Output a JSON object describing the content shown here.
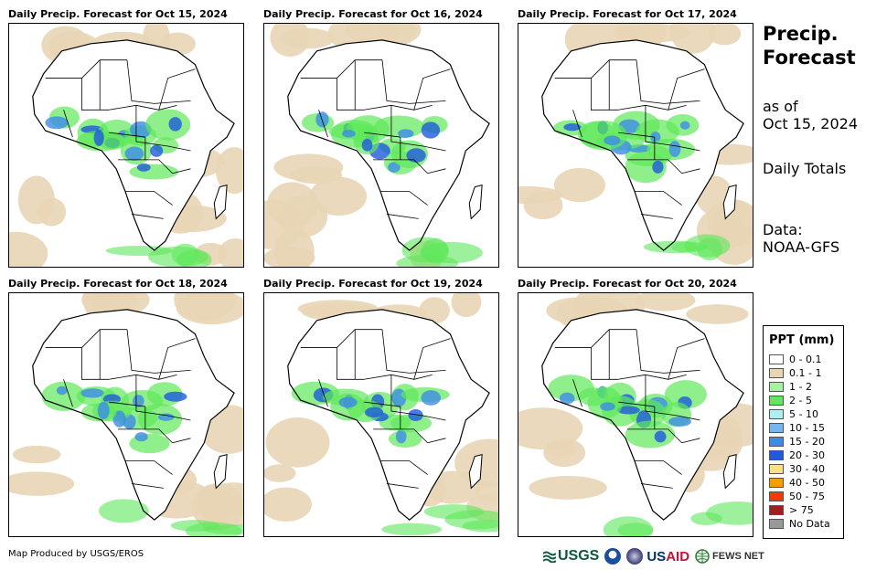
{
  "panels": [
    {
      "title": "Daily Precip. Forecast for Oct 15, 2024"
    },
    {
      "title": "Daily Precip. Forecast for Oct 16, 2024"
    },
    {
      "title": "Daily Precip. Forecast for Oct 17, 2024"
    },
    {
      "title": "Daily Precip. Forecast for Oct 18, 2024"
    },
    {
      "title": "Daily Precip. Forecast for Oct 19, 2024"
    },
    {
      "title": "Daily Precip. Forecast for Oct 20, 2024"
    }
  ],
  "side": {
    "title_line1": "Precip.",
    "title_line2": "Forecast",
    "asof_line1": "as of",
    "asof_line2": "Oct 15, 2024",
    "totals": "Daily Totals",
    "data_line1": "Data:",
    "data_line2": "NOAA-GFS"
  },
  "legend": {
    "title": "PPT (mm)",
    "items": [
      {
        "label": "0 - 0.1",
        "color": "#ffffff"
      },
      {
        "label": "0.1 - 1",
        "color": "#e8d5b5"
      },
      {
        "label": "1 - 2",
        "color": "#a9f0a0"
      },
      {
        "label": "2 - 5",
        "color": "#5ee85a"
      },
      {
        "label": "5 - 10",
        "color": "#aef0f0"
      },
      {
        "label": "10 - 15",
        "color": "#78b4f0"
      },
      {
        "label": "15 - 20",
        "color": "#3c8ce6"
      },
      {
        "label": "20 - 30",
        "color": "#1e5adc"
      },
      {
        "label": "30 - 40",
        "color": "#f8e08a"
      },
      {
        "label": "40 - 50",
        "color": "#f0a000"
      },
      {
        "label": "50 - 75",
        "color": "#f03c00"
      },
      {
        "label": "> 75",
        "color": "#a01e1e"
      },
      {
        "label": "No Data",
        "color": "#999999"
      }
    ]
  },
  "footer": {
    "credit": "Map Produced by USGS/EROS"
  },
  "logos": {
    "usgs": "USGS",
    "usaid_a": "US",
    "usaid_b": "AID",
    "fews": "FEWS NET"
  }
}
